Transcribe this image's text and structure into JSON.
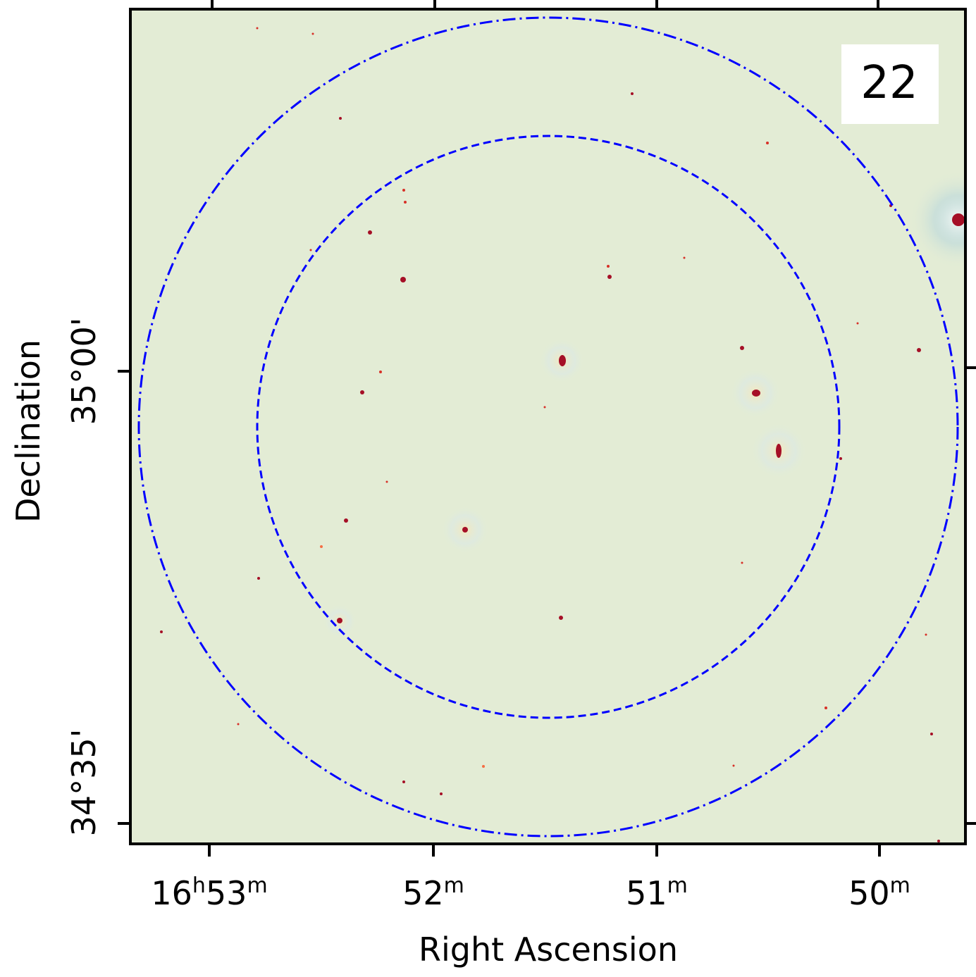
{
  "chart_data": {
    "type": "heatmap",
    "description_type": "radio sky image with circular field-of-view markers",
    "panel_label": "22",
    "xlabel": "Right Ascension",
    "ylabel": "Declination",
    "x_ticks": [
      {
        "value": "16h53m",
        "parts": [
          {
            "t": "16",
            "sup": false
          },
          {
            "t": "h",
            "sup": true
          },
          {
            "t": "53",
            "sup": false
          },
          {
            "t": "m",
            "sup": true
          }
        ]
      },
      {
        "value": "52m",
        "parts": [
          {
            "t": "52",
            "sup": false
          },
          {
            "t": "m",
            "sup": true
          }
        ]
      },
      {
        "value": "51m",
        "parts": [
          {
            "t": "51",
            "sup": false
          },
          {
            "t": "m",
            "sup": true
          }
        ]
      },
      {
        "value": "50m",
        "parts": [
          {
            "t": "50",
            "sup": false
          },
          {
            "t": "m",
            "sup": true
          }
        ]
      }
    ],
    "y_ticks": [
      {
        "value": "35°00'",
        "parts": [
          "35°00'"
        ]
      },
      {
        "value": "34°35'",
        "parts": [
          "34°35'"
        ]
      }
    ],
    "circles": [
      {
        "name": "outer",
        "style": "dash-dot",
        "color": "#0000ff"
      },
      {
        "name": "inner",
        "style": "dashed",
        "color": "#0000ff"
      }
    ],
    "colormap": "RdYlBu_r",
    "background_color": "#e3ecd5",
    "source_color": "#a50f26",
    "grid": false
  }
}
